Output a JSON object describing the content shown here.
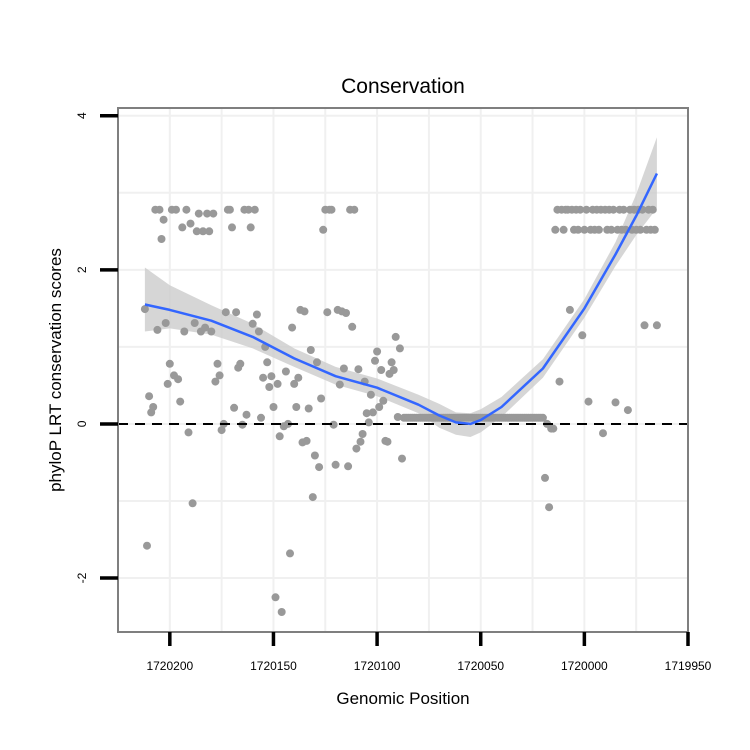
{
  "chart_data": {
    "type": "scatter",
    "title": "Conservation",
    "xlabel": "Genomic Position",
    "ylabel": "phyloP LRT conservation scores",
    "x_reversed": true,
    "xlim": [
      1720225,
      1719950
    ],
    "ylim": [
      -2.7,
      4.1
    ],
    "x_ticks": [
      1720200,
      1720150,
      1720100,
      1720050,
      1720000,
      1719950
    ],
    "x_tick_labels": [
      "1720200",
      "1720150",
      "1720100",
      "1720050",
      "1720000",
      "1719950"
    ],
    "y_ticks": [
      -2,
      0,
      2,
      4
    ],
    "y_tick_labels": [
      "-2",
      "0",
      "2",
      "4"
    ],
    "grid": true,
    "reference_line": {
      "y": 0,
      "style": "dashed"
    },
    "colors": {
      "points": "#999999",
      "smooth": "#3366ff",
      "ribbon": "#cccccc",
      "grid": "#f0f0f0",
      "frame": "#7f7f7f"
    },
    "series": [
      {
        "name": "scores",
        "kind": "points",
        "points": [
          [
            1720212,
            1.49
          ],
          [
            1720211,
            -1.58
          ],
          [
            1720210,
            0.36
          ],
          [
            1720209,
            0.15
          ],
          [
            1720208,
            0.22
          ],
          [
            1720207,
            2.78
          ],
          [
            1720206,
            1.22
          ],
          [
            1720205,
            2.78
          ],
          [
            1720204,
            2.4
          ],
          [
            1720203,
            2.65
          ],
          [
            1720202,
            1.31
          ],
          [
            1720201,
            0.52
          ],
          [
            1720200,
            0.78
          ],
          [
            1720199,
            2.78
          ],
          [
            1720198,
            0.63
          ],
          [
            1720197,
            2.78
          ],
          [
            1720196,
            0.58
          ],
          [
            1720195,
            0.29
          ],
          [
            1720194,
            2.55
          ],
          [
            1720193,
            1.2
          ],
          [
            1720192,
            2.78
          ],
          [
            1720191,
            -0.11
          ],
          [
            1720190,
            2.6
          ],
          [
            1720189,
            -1.03
          ],
          [
            1720188,
            1.31
          ],
          [
            1720187,
            2.5
          ],
          [
            1720186,
            2.73
          ],
          [
            1720185,
            1.2
          ],
          [
            1720184,
            2.5
          ],
          [
            1720183,
            1.25
          ],
          [
            1720182,
            2.73
          ],
          [
            1720181,
            2.5
          ],
          [
            1720180,
            1.2
          ],
          [
            1720179,
            2.73
          ],
          [
            1720178,
            0.55
          ],
          [
            1720177,
            0.78
          ],
          [
            1720176,
            0.63
          ],
          [
            1720175,
            -0.08
          ],
          [
            1720174,
            0.0
          ],
          [
            1720173,
            1.45
          ],
          [
            1720172,
            2.78
          ],
          [
            1720171,
            2.78
          ],
          [
            1720170,
            2.55
          ],
          [
            1720169,
            0.21
          ],
          [
            1720168,
            1.45
          ],
          [
            1720167,
            0.73
          ],
          [
            1720166,
            0.78
          ],
          [
            1720165,
            -0.01
          ],
          [
            1720164,
            2.78
          ],
          [
            1720163,
            0.12
          ],
          [
            1720162,
            2.78
          ],
          [
            1720161,
            2.55
          ],
          [
            1720160,
            1.3
          ],
          [
            1720159,
            2.78
          ],
          [
            1720158,
            1.42
          ],
          [
            1720157,
            1.2
          ],
          [
            1720156,
            0.08
          ],
          [
            1720155,
            0.6
          ],
          [
            1720154,
            1.0
          ],
          [
            1720153,
            0.8
          ],
          [
            1720152,
            0.48
          ],
          [
            1720151,
            0.62
          ],
          [
            1720150,
            0.22
          ],
          [
            1720149,
            -2.25
          ],
          [
            1720148,
            0.52
          ],
          [
            1720147,
            -0.16
          ],
          [
            1720146,
            -2.44
          ],
          [
            1720145,
            -0.03
          ],
          [
            1720144,
            0.68
          ],
          [
            1720143,
            0.0
          ],
          [
            1720142,
            -1.68
          ],
          [
            1720141,
            1.25
          ],
          [
            1720140,
            0.52
          ],
          [
            1720139,
            0.22
          ],
          [
            1720138,
            0.6
          ],
          [
            1720137,
            1.48
          ],
          [
            1720136,
            -0.24
          ],
          [
            1720135,
            1.46
          ],
          [
            1720134,
            -0.22
          ],
          [
            1720133,
            0.2
          ],
          [
            1720132,
            0.96
          ],
          [
            1720131,
            -0.95
          ],
          [
            1720130,
            -0.41
          ],
          [
            1720129,
            0.8
          ],
          [
            1720128,
            -0.56
          ],
          [
            1720127,
            0.33
          ],
          [
            1720126,
            2.52
          ],
          [
            1720125,
            2.78
          ],
          [
            1720124,
            1.45
          ],
          [
            1720123,
            2.78
          ],
          [
            1720122,
            2.78
          ],
          [
            1720121,
            -0.01
          ],
          [
            1720120,
            -0.53
          ],
          [
            1720119,
            1.48
          ],
          [
            1720118,
            0.51
          ],
          [
            1720117,
            1.46
          ],
          [
            1720116,
            0.72
          ],
          [
            1720115,
            1.44
          ],
          [
            1720114,
            -0.55
          ],
          [
            1720113,
            2.78
          ],
          [
            1720112,
            1.26
          ],
          [
            1720111,
            2.78
          ],
          [
            1720110,
            -0.32
          ],
          [
            1720109,
            0.71
          ],
          [
            1720108,
            -0.23
          ],
          [
            1720107,
            -0.13
          ],
          [
            1720106,
            0.55
          ],
          [
            1720105,
            0.14
          ],
          [
            1720104,
            0.02
          ],
          [
            1720103,
            0.38
          ],
          [
            1720102,
            0.15
          ],
          [
            1720101,
            0.82
          ],
          [
            1720100,
            0.94
          ],
          [
            1720099,
            0.22
          ],
          [
            1720098,
            0.7
          ],
          [
            1720097,
            0.3
          ],
          [
            1720096,
            -0.22
          ],
          [
            1720095,
            -0.23
          ],
          [
            1720094,
            0.65
          ],
          [
            1720093,
            0.8
          ],
          [
            1720092,
            0.7
          ],
          [
            1720091,
            1.13
          ],
          [
            1720090,
            0.09
          ],
          [
            1720089,
            0.98
          ],
          [
            1720088,
            -0.45
          ],
          [
            1720087,
            0.08
          ],
          [
            1720086,
            0.08
          ],
          [
            1720085,
            0.08
          ],
          [
            1720084,
            0.08
          ],
          [
            1720083,
            0.08
          ],
          [
            1720082,
            0.08
          ],
          [
            1720081,
            0.08
          ],
          [
            1720080,
            0.08
          ],
          [
            1720079,
            0.08
          ],
          [
            1720078,
            0.08
          ],
          [
            1720077,
            0.08
          ],
          [
            1720076,
            0.08
          ],
          [
            1720075,
            0.08
          ],
          [
            1720074,
            0.08
          ],
          [
            1720073,
            0.08
          ],
          [
            1720072,
            0.08
          ],
          [
            1720071,
            0.08
          ],
          [
            1720070,
            0.08
          ],
          [
            1720069,
            0.08
          ],
          [
            1720068,
            0.08
          ],
          [
            1720067,
            0.08
          ],
          [
            1720066,
            0.08
          ],
          [
            1720065,
            0.08
          ],
          [
            1720064,
            0.08
          ],
          [
            1720063,
            0.08
          ],
          [
            1720062,
            0.08
          ],
          [
            1720061,
            0.08
          ],
          [
            1720060,
            0.08
          ],
          [
            1720059,
            0.08
          ],
          [
            1720058,
            0.08
          ],
          [
            1720057,
            0.08
          ],
          [
            1720056,
            0.08
          ],
          [
            1720055,
            0.08
          ],
          [
            1720054,
            0.08
          ],
          [
            1720053,
            0.08
          ],
          [
            1720052,
            0.08
          ],
          [
            1720051,
            0.08
          ],
          [
            1720050,
            0.08
          ],
          [
            1720049,
            0.08
          ],
          [
            1720048,
            0.08
          ],
          [
            1720047,
            0.08
          ],
          [
            1720046,
            0.08
          ],
          [
            1720045,
            0.08
          ],
          [
            1720044,
            0.08
          ],
          [
            1720043,
            0.08
          ],
          [
            1720042,
            0.08
          ],
          [
            1720041,
            0.08
          ],
          [
            1720040,
            0.08
          ],
          [
            1720039,
            0.08
          ],
          [
            1720038,
            0.08
          ],
          [
            1720037,
            0.08
          ],
          [
            1720036,
            0.08
          ],
          [
            1720035,
            0.08
          ],
          [
            1720034,
            0.08
          ],
          [
            1720033,
            0.08
          ],
          [
            1720032,
            0.08
          ],
          [
            1720031,
            0.08
          ],
          [
            1720030,
            0.08
          ],
          [
            1720029,
            0.08
          ],
          [
            1720028,
            0.08
          ],
          [
            1720027,
            0.08
          ],
          [
            1720026,
            0.08
          ],
          [
            1720025,
            0.08
          ],
          [
            1720024,
            0.08
          ],
          [
            1720023,
            0.08
          ],
          [
            1720022,
            0.08
          ],
          [
            1720021,
            0.08
          ],
          [
            1720020,
            0.08
          ],
          [
            1720019,
            -0.7
          ],
          [
            1720018,
            0.0
          ],
          [
            1720017,
            -1.08
          ],
          [
            1720016,
            -0.06
          ],
          [
            1720015,
            -0.06
          ],
          [
            1720014,
            2.52
          ],
          [
            1720013,
            2.78
          ],
          [
            1720012,
            0.55
          ],
          [
            1720011,
            2.78
          ],
          [
            1720010,
            2.52
          ],
          [
            1720009,
            2.78
          ],
          [
            1720008,
            2.78
          ],
          [
            1720007,
            1.48
          ],
          [
            1720006,
            2.78
          ],
          [
            1720005,
            2.52
          ],
          [
            1720004,
            2.78
          ],
          [
            1720003,
            2.52
          ],
          [
            1720002,
            2.78
          ],
          [
            1720001,
            1.15
          ],
          [
            1720000,
            2.52
          ],
          [
            1719999,
            2.78
          ],
          [
            1719998,
            0.29
          ],
          [
            1719997,
            2.52
          ],
          [
            1719996,
            2.78
          ],
          [
            1719995,
            2.52
          ],
          [
            1719994,
            2.78
          ],
          [
            1719993,
            2.52
          ],
          [
            1719992,
            2.78
          ],
          [
            1719991,
            -0.12
          ],
          [
            1719990,
            2.78
          ],
          [
            1719989,
            2.52
          ],
          [
            1719988,
            2.78
          ],
          [
            1719987,
            2.52
          ],
          [
            1719986,
            2.78
          ],
          [
            1719985,
            0.28
          ],
          [
            1719984,
            2.52
          ],
          [
            1719983,
            2.78
          ],
          [
            1719982,
            2.52
          ],
          [
            1719981,
            2.78
          ],
          [
            1719980,
            2.52
          ],
          [
            1719979,
            0.18
          ],
          [
            1719978,
            2.78
          ],
          [
            1719977,
            2.52
          ],
          [
            1719976,
            2.78
          ],
          [
            1719975,
            2.52
          ],
          [
            1719974,
            2.78
          ],
          [
            1719973,
            2.52
          ],
          [
            1719972,
            2.78
          ],
          [
            1719971,
            1.28
          ],
          [
            1719970,
            2.52
          ],
          [
            1719969,
            2.78
          ],
          [
            1719968,
            2.52
          ],
          [
            1719967,
            2.78
          ],
          [
            1719966,
            2.52
          ],
          [
            1719965,
            1.28
          ]
        ]
      },
      {
        "name": "loess fit",
        "kind": "smooth",
        "x": [
          1720212,
          1720200,
          1720180,
          1720160,
          1720140,
          1720120,
          1720100,
          1720080,
          1720070,
          1720062,
          1720055,
          1720050,
          1720040,
          1720020,
          1720000,
          1719985,
          1719975,
          1719965
        ],
        "y": [
          1.55,
          1.48,
          1.34,
          1.13,
          0.85,
          0.62,
          0.47,
          0.25,
          0.11,
          0.02,
          0.0,
          0.05,
          0.22,
          0.72,
          1.5,
          2.2,
          2.7,
          3.25
        ],
        "lower": [
          1.2,
          1.24,
          1.16,
          0.98,
          0.74,
          0.51,
          0.36,
          0.14,
          -0.05,
          -0.14,
          -0.17,
          -0.11,
          0.09,
          0.6,
          1.38,
          2.05,
          2.45,
          2.8
        ],
        "upper": [
          2.03,
          1.8,
          1.54,
          1.3,
          0.98,
          0.74,
          0.59,
          0.38,
          0.26,
          0.15,
          0.14,
          0.19,
          0.35,
          0.84,
          1.62,
          2.36,
          2.98,
          3.72
        ]
      }
    ]
  }
}
